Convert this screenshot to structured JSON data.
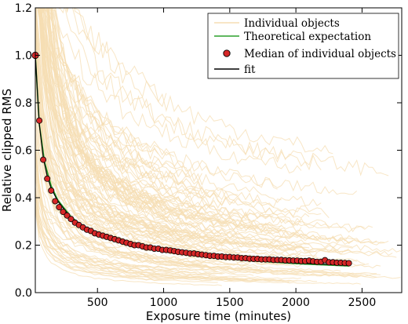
{
  "chart_data": {
    "type": "line",
    "title": "",
    "xlabel": "Exposure time (minutes)",
    "ylabel": "Relative clipped RMS",
    "xlim": [
      30,
      2800
    ],
    "ylim": [
      0,
      1.2
    ],
    "xticks": [
      500,
      1000,
      1500,
      2000,
      2500
    ],
    "yticks": [
      0.0,
      0.2,
      0.4,
      0.6,
      0.8,
      1.0,
      1.2
    ],
    "grid": false,
    "legend_position": "top-right",
    "colors": {
      "individual": "#f5deb3",
      "theory": "#2ca02c",
      "median_fill": "#d62728",
      "median_edge": "#000000",
      "fit": "#000000"
    },
    "series": [
      {
        "name": "Individual objects",
        "kind": "band",
        "note_curves": 120
      },
      {
        "name": "Theoretical expectation",
        "kind": "line",
        "x": [
          30,
          60,
          100,
          150,
          200,
          300,
          400,
          500,
          700,
          1000,
          1300,
          1600,
          2000,
          2400
        ],
        "y": [
          1.0,
          0.71,
          0.55,
          0.45,
          0.39,
          0.32,
          0.275,
          0.245,
          0.207,
          0.173,
          0.152,
          0.137,
          0.122,
          0.112
        ]
      },
      {
        "name": "Median of individual objects",
        "kind": "scatter",
        "x": [
          30,
          60,
          90,
          120,
          150,
          180,
          210,
          240,
          270,
          300,
          330,
          360,
          390,
          420,
          450,
          480,
          510,
          540,
          570,
          600,
          630,
          660,
          690,
          720,
          750,
          780,
          810,
          840,
          870,
          900,
          930,
          960,
          990,
          1020,
          1050,
          1080,
          1110,
          1140,
          1170,
          1200,
          1230,
          1260,
          1290,
          1320,
          1350,
          1380,
          1410,
          1440,
          1470,
          1500,
          1530,
          1560,
          1590,
          1620,
          1650,
          1680,
          1710,
          1740,
          1770,
          1800,
          1830,
          1860,
          1890,
          1920,
          1950,
          1980,
          2010,
          2040,
          2070,
          2100,
          2130,
          2160,
          2190,
          2220,
          2250,
          2280,
          2310,
          2340,
          2370,
          2400
        ],
        "y": [
          1.0,
          0.725,
          0.56,
          0.48,
          0.43,
          0.385,
          0.36,
          0.34,
          0.325,
          0.31,
          0.295,
          0.285,
          0.275,
          0.265,
          0.26,
          0.25,
          0.245,
          0.24,
          0.235,
          0.23,
          0.225,
          0.22,
          0.215,
          0.21,
          0.205,
          0.2,
          0.2,
          0.195,
          0.19,
          0.19,
          0.185,
          0.185,
          0.18,
          0.18,
          0.178,
          0.175,
          0.172,
          0.17,
          0.168,
          0.165,
          0.165,
          0.162,
          0.16,
          0.158,
          0.155,
          0.155,
          0.152,
          0.152,
          0.15,
          0.15,
          0.148,
          0.148,
          0.145,
          0.145,
          0.143,
          0.142,
          0.142,
          0.14,
          0.14,
          0.14,
          0.138,
          0.138,
          0.138,
          0.136,
          0.136,
          0.135,
          0.135,
          0.133,
          0.133,
          0.135,
          0.132,
          0.13,
          0.13,
          0.137,
          0.128,
          0.128,
          0.126,
          0.126,
          0.125,
          0.124
        ]
      },
      {
        "name": "fit",
        "kind": "line",
        "x": [
          30,
          60,
          90,
          120,
          150,
          200,
          300,
          400,
          500,
          700,
          1000,
          1300,
          1600,
          2000,
          2400
        ],
        "y": [
          1.0,
          0.71,
          0.57,
          0.49,
          0.44,
          0.385,
          0.315,
          0.27,
          0.24,
          0.205,
          0.172,
          0.152,
          0.138,
          0.125,
          0.115
        ]
      }
    ]
  }
}
